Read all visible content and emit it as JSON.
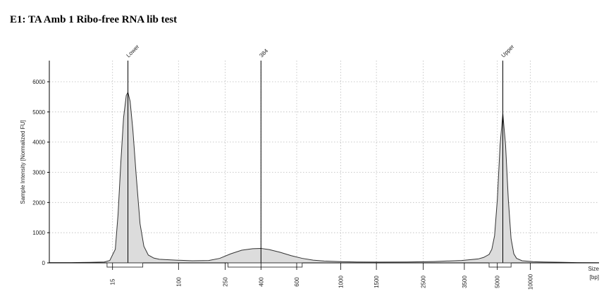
{
  "title": "E1: TA Amb 1 Ribo-free RNA lib test",
  "chart_data": {
    "type": "area",
    "title": "E1: TA Amb 1 Ribo-free RNA lib test",
    "ylabel": "Sample Intensity [Normalized FU]",
    "xlabel_top": "Size",
    "xlabel_bottom": "[bp]",
    "ylim": [
      0,
      6700
    ],
    "yticks": [
      0,
      1000,
      2000,
      3000,
      4000,
      5000,
      6000
    ],
    "xlim": [
      0,
      10
    ],
    "grid": "dotted",
    "xticks": [
      {
        "label": "15",
        "pos": 1.15
      },
      {
        "label": "100",
        "pos": 2.35
      },
      {
        "label": "250",
        "pos": 3.2
      },
      {
        "label": "400",
        "pos": 3.85
      },
      {
        "label": "600",
        "pos": 4.5
      },
      {
        "label": "1000",
        "pos": 5.3
      },
      {
        "label": "1500",
        "pos": 5.95
      },
      {
        "label": "2500",
        "pos": 6.8
      },
      {
        "label": "3500",
        "pos": 7.55
      },
      {
        "label": "5000",
        "pos": 8.15
      },
      {
        "label": "10000",
        "pos": 8.75
      }
    ],
    "peaks": [
      {
        "label": "Lower",
        "pos": 1.43,
        "height": 5650
      },
      {
        "label": "384",
        "pos": 3.85,
        "height": 480
      },
      {
        "label": "Upper",
        "pos": 8.25,
        "height": 4950
      }
    ],
    "region_markers": [
      {
        "from": 1.05,
        "to": 1.7
      },
      {
        "from": 3.25,
        "to": 4.6
      },
      {
        "from": 8.0,
        "to": 8.4
      }
    ],
    "trace": {
      "x": [
        0.0,
        0.2,
        0.4,
        0.6,
        0.8,
        1.0,
        1.1,
        1.2,
        1.25,
        1.3,
        1.35,
        1.4,
        1.43,
        1.47,
        1.52,
        1.58,
        1.65,
        1.72,
        1.8,
        1.9,
        2.0,
        2.3,
        2.6,
        2.9,
        3.1,
        3.3,
        3.5,
        3.7,
        3.85,
        4.0,
        4.2,
        4.4,
        4.6,
        4.8,
        5.0,
        5.3,
        5.6,
        6.0,
        6.5,
        7.0,
        7.5,
        7.8,
        7.9,
        8.0,
        8.05,
        8.1,
        8.15,
        8.2,
        8.25,
        8.3,
        8.35,
        8.4,
        8.45,
        8.5,
        8.6,
        8.8,
        9.0,
        9.3,
        9.6,
        10.0
      ],
      "y": [
        10,
        10,
        10,
        15,
        20,
        30,
        80,
        450,
        1600,
        3300,
        4800,
        5550,
        5650,
        5350,
        4400,
        2900,
        1300,
        550,
        260,
        160,
        120,
        90,
        70,
        80,
        150,
        300,
        420,
        470,
        480,
        440,
        350,
        240,
        150,
        90,
        60,
        40,
        30,
        25,
        30,
        45,
        80,
        130,
        180,
        280,
        450,
        900,
        2100,
        3900,
        4950,
        3900,
        2100,
        800,
        300,
        150,
        70,
        40,
        30,
        20,
        10,
        5
      ]
    }
  }
}
